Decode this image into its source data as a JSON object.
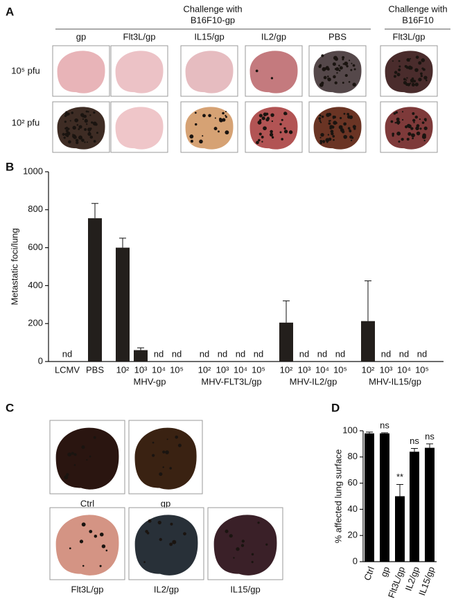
{
  "panel_labels": [
    "A",
    "B",
    "C",
    "D"
  ],
  "panel_a": {
    "headers": [
      [
        "Challenge with",
        "B16F10-gp"
      ],
      [
        "Challenge with",
        "B16F10"
      ]
    ],
    "columns": [
      "gp",
      "Flt3L/gp",
      "IL15/gp",
      "IL2/gp",
      "PBS",
      "Flt3L/gp"
    ],
    "rows": [
      "10⁵ pfu",
      "10² pfu"
    ]
  },
  "panel_c": {
    "labels": [
      "Ctrl",
      "gp",
      "Flt3L/gp",
      "IL2/gp",
      "IL15/gp"
    ]
  },
  "chart_data": [
    {
      "type": "bar",
      "y_label": "Metastatic foci/lung",
      "color": "#231f1c",
      "categories": [
        "LCMV",
        "PBS",
        "10²",
        "10³",
        "10⁴",
        "10⁵",
        "10²",
        "10³",
        "10⁴",
        "10⁵",
        "10²",
        "10³",
        "10⁴",
        "10⁵",
        "10²",
        "10³",
        "10⁴",
        "10⁵"
      ],
      "category_groups": [
        null,
        null,
        "MHV-gp",
        "MHV-gp",
        "MHV-gp",
        "MHV-gp",
        "MHV-FLT3L/gp",
        "MHV-FLT3L/gp",
        "MHV-FLT3L/gp",
        "MHV-FLT3L/gp",
        "MHV-IL2/gp",
        "MHV-IL2/gp",
        "MHV-IL2/gp",
        "MHV-IL2/gp",
        "MHV-IL15/gp",
        "MHV-IL15/gp",
        "MHV-IL15/gp",
        "MHV-IL15/gp"
      ],
      "values": [
        null,
        755,
        600,
        60,
        null,
        null,
        null,
        null,
        null,
        null,
        205,
        null,
        null,
        null,
        213,
        null,
        null,
        null
      ],
      "errors": [
        null,
        78,
        50,
        12,
        null,
        null,
        null,
        null,
        null,
        null,
        115,
        null,
        null,
        null,
        212,
        null,
        null,
        null
      ],
      "value_labels": [
        "nd",
        null,
        null,
        null,
        "nd",
        "nd",
        "nd",
        "nd",
        "nd",
        "nd",
        null,
        "nd",
        "nd",
        "nd",
        null,
        "nd",
        "nd",
        "nd"
      ],
      "ylim": [
        0,
        1000
      ],
      "yticks": [
        0,
        200,
        400,
        600,
        800,
        1000
      ]
    },
    {
      "type": "bar",
      "y_label": "% affected lung surface",
      "color": "#000000",
      "categories": [
        "Ctrl",
        "gp",
        "Flt3L/gp",
        "IL2/gp",
        "IL15/gp"
      ],
      "values": [
        98,
        98,
        50,
        84,
        87
      ],
      "errors": [
        1,
        0.5,
        9,
        2.5,
        3
      ],
      "annotations": [
        null,
        "ns",
        "**",
        "ns",
        "ns"
      ],
      "ylim": [
        0,
        100
      ],
      "yticks": [
        0,
        20,
        40,
        60,
        80,
        100
      ]
    }
  ]
}
